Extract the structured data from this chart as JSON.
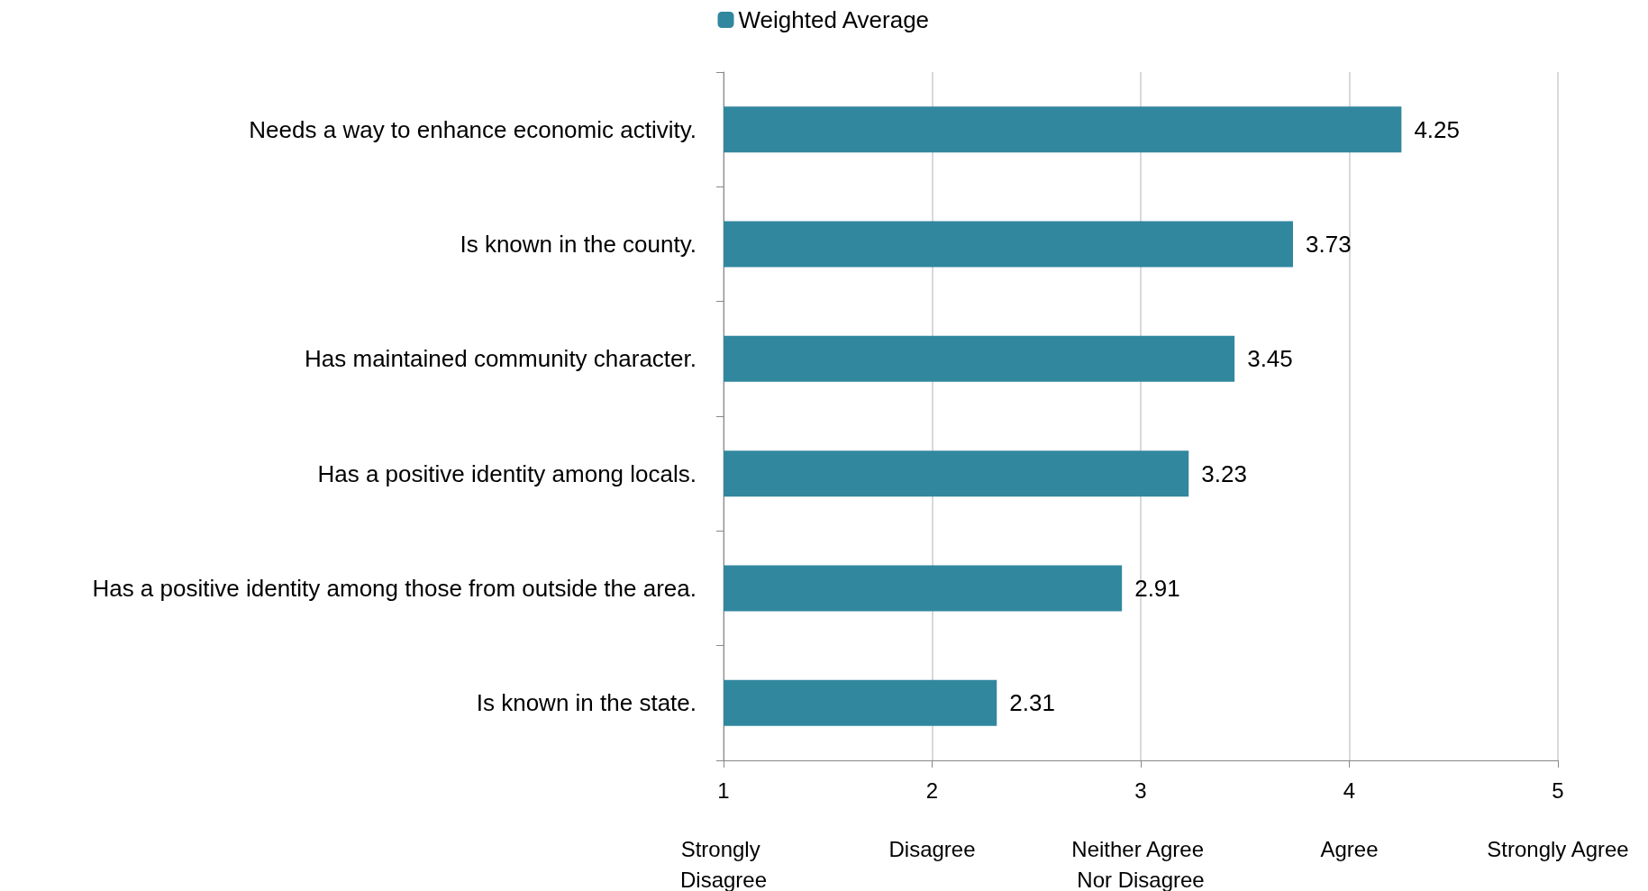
{
  "chart_data": {
    "type": "bar",
    "orientation": "horizontal",
    "categories": [
      "Needs a way to enhance economic activity.",
      "Is known in the county.",
      "Has maintained community character.",
      "Has a positive identity among locals.",
      "Has a positive identity among those from outside the area.",
      "Is known in the state."
    ],
    "series": [
      {
        "name": "Weighted Average",
        "color": "#31879e",
        "values": [
          4.25,
          3.73,
          3.45,
          3.23,
          2.91,
          2.31
        ]
      }
    ],
    "xlim": [
      1,
      5
    ],
    "xticks": [
      1,
      2,
      3,
      4,
      5
    ],
    "annotations": [
      "Strongly Disagree",
      "Disagree",
      "Neither Agree Nor Disagree",
      "Agree",
      "Strongly Agree"
    ],
    "grid": "x",
    "legend": "top",
    "data_labels": true
  }
}
